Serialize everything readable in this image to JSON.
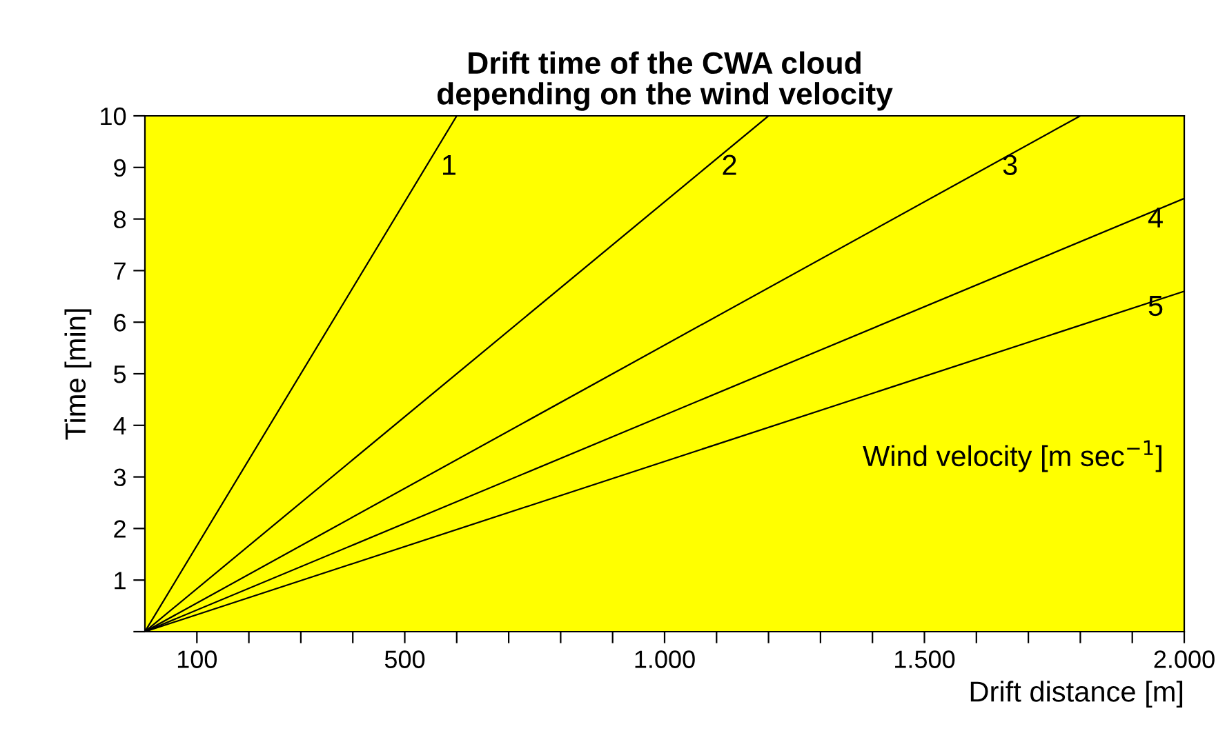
{
  "chart_data": {
    "type": "line",
    "title": "Drift time of the CWA cloud\ndepending on the wind velocity",
    "xlabel": "Drift distance [m]",
    "ylabel": "Time [min]",
    "annotations": [
      "Wind velocity [m sec$^{−1}$]"
    ],
    "series": [
      {
        "name": "1",
        "color": "#000000",
        "x": [
          0,
          600
        ],
        "values": [
          0,
          10
        ]
      },
      {
        "name": "2",
        "color": "#000000",
        "x": [
          0,
          1200
        ],
        "values": [
          0,
          10
        ]
      },
      {
        "name": "3",
        "color": "#000000",
        "x": [
          0,
          1800
        ],
        "values": [
          0,
          10
        ]
      },
      {
        "name": "4",
        "color": "#000000",
        "x": [
          0,
          2000
        ],
        "values": [
          0,
          8.4
        ]
      },
      {
        "name": "5",
        "color": "#000000",
        "x": [
          0,
          2000
        ],
        "values": [
          0,
          6.6
        ]
      }
    ],
    "xlim": [
      0,
      2000
    ],
    "ylim": [
      0,
      10
    ],
    "xticks": [
      100,
      {
        "value": 200,
        "label": null
      },
      {
        "value": 300,
        "label": null
      },
      {
        "value": 400,
        "label": null
      },
      500,
      {
        "value": 600,
        "label": null
      },
      {
        "value": 700,
        "label": null
      },
      {
        "value": 800,
        "label": null
      },
      {
        "value": 900,
        "label": null
      },
      {
        "value": 1000,
        "label": "1.000"
      },
      {
        "value": 1100,
        "label": null
      },
      {
        "value": 1200,
        "label": null
      },
      {
        "value": 1300,
        "label": null
      },
      {
        "value": 1400,
        "label": null
      },
      {
        "value": 1500,
        "label": "1.500"
      },
      {
        "value": 1600,
        "label": null
      },
      {
        "value": 1700,
        "label": null
      },
      {
        "value": 1800,
        "label": null
      },
      {
        "value": 1900,
        "label": null
      },
      {
        "value": 2000,
        "label": "2.000"
      }
    ],
    "yticks": [
      {
        "value": 0,
        "label": null
      },
      1,
      2,
      3,
      4,
      5,
      6,
      7,
      8,
      9,
      10
    ],
    "grid": false,
    "legend": false,
    "marker": "none",
    "line_style": "solid"
  }
}
